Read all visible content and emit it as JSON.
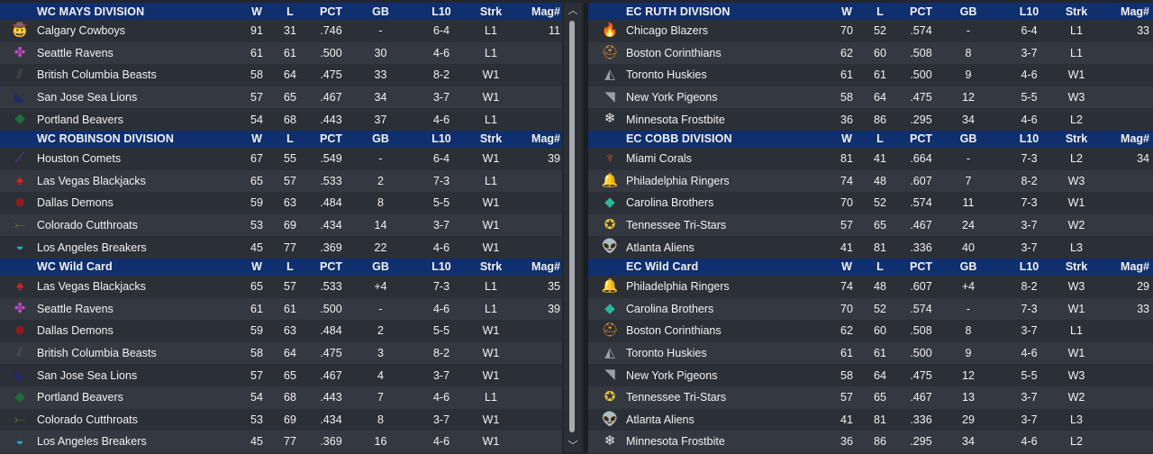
{
  "columns": [
    "W",
    "L",
    "PCT",
    "GB",
    "L10",
    "Strk",
    "Mag#"
  ],
  "left": [
    {
      "title": "WC MAYS DIVISION",
      "rows": [
        {
          "team": "Calgary Cowboys",
          "logo": "cowboy-hat-icon",
          "logo_glyph": "🤠",
          "color": "#4aa3d8",
          "w": "91",
          "l": "31",
          "pct": ".746",
          "gb": "-",
          "l10": "6-4",
          "strk": "L1",
          "mag": "11"
        },
        {
          "team": "Seattle Ravens",
          "logo": "raven-icon",
          "logo_glyph": "✤",
          "color": "#c24ac2",
          "w": "61",
          "l": "61",
          "pct": ".500",
          "gb": "30",
          "l10": "4-6",
          "strk": "L1",
          "mag": ""
        },
        {
          "team": "British Columbia Beasts",
          "logo": "claw-icon",
          "logo_glyph": "⫽",
          "color": "#5a5a5a",
          "w": "58",
          "l": "64",
          "pct": ".475",
          "gb": "33",
          "l10": "8-2",
          "strk": "W1",
          "mag": ""
        },
        {
          "team": "San Jose Sea Lions",
          "logo": "sea-lion-icon",
          "logo_glyph": "◣",
          "color": "#1f2a66",
          "w": "57",
          "l": "65",
          "pct": ".467",
          "gb": "34",
          "l10": "3-7",
          "strk": "W1",
          "mag": ""
        },
        {
          "team": "Portland Beavers",
          "logo": "beaver-icon",
          "logo_glyph": "◆",
          "color": "#1f6e3a",
          "w": "54",
          "l": "68",
          "pct": ".443",
          "gb": "37",
          "l10": "4-6",
          "strk": "L1",
          "mag": ""
        }
      ]
    },
    {
      "title": "WC ROBINSON DIVISION",
      "rows": [
        {
          "team": "Houston Comets",
          "logo": "comet-icon",
          "logo_glyph": "⟋",
          "color": "#7a3ab0",
          "w": "67",
          "l": "55",
          "pct": ".549",
          "gb": "-",
          "l10": "6-4",
          "strk": "W1",
          "mag": "39"
        },
        {
          "team": "Las Vegas Blackjacks",
          "logo": "spade-icon",
          "logo_glyph": "♠",
          "color": "#d42424",
          "w": "65",
          "l": "57",
          "pct": ".533",
          "gb": "2",
          "l10": "7-3",
          "strk": "L1",
          "mag": ""
        },
        {
          "team": "Dallas Demons",
          "logo": "demon-icon",
          "logo_glyph": "☻",
          "color": "#9a1b1b",
          "w": "59",
          "l": "63",
          "pct": ".484",
          "gb": "8",
          "l10": "5-5",
          "strk": "W1",
          "mag": ""
        },
        {
          "team": "Colorado Cutthroats",
          "logo": "fish-icon",
          "logo_glyph": "⤚",
          "color": "#6b7a3a",
          "w": "53",
          "l": "69",
          "pct": ".434",
          "gb": "14",
          "l10": "3-7",
          "strk": "W1",
          "mag": ""
        },
        {
          "team": "Los Angeles Breakers",
          "logo": "wave-icon",
          "logo_glyph": "◒",
          "color": "#26a8c8",
          "w": "45",
          "l": "77",
          "pct": ".369",
          "gb": "22",
          "l10": "4-6",
          "strk": "W1",
          "mag": ""
        }
      ]
    },
    {
      "title": "WC  Wild Card",
      "rows": [
        {
          "team": "Las Vegas Blackjacks",
          "logo": "spade-icon",
          "logo_glyph": "♠",
          "color": "#d42424",
          "w": "65",
          "l": "57",
          "pct": ".533",
          "gb": "+4",
          "l10": "7-3",
          "strk": "L1",
          "mag": "35"
        },
        {
          "team": "Seattle Ravens",
          "logo": "raven-icon",
          "logo_glyph": "✤",
          "color": "#c24ac2",
          "w": "61",
          "l": "61",
          "pct": ".500",
          "gb": "-",
          "l10": "4-6",
          "strk": "L1",
          "mag": "39"
        },
        {
          "team": "Dallas Demons",
          "logo": "demon-icon",
          "logo_glyph": "☻",
          "color": "#9a1b1b",
          "w": "59",
          "l": "63",
          "pct": ".484",
          "gb": "2",
          "l10": "5-5",
          "strk": "W1",
          "mag": ""
        },
        {
          "team": "British Columbia Beasts",
          "logo": "claw-icon",
          "logo_glyph": "⫽",
          "color": "#5a5a5a",
          "w": "58",
          "l": "64",
          "pct": ".475",
          "gb": "3",
          "l10": "8-2",
          "strk": "W1",
          "mag": ""
        },
        {
          "team": "San Jose Sea Lions",
          "logo": "sea-lion-icon",
          "logo_glyph": "◣",
          "color": "#1f2a66",
          "w": "57",
          "l": "65",
          "pct": ".467",
          "gb": "4",
          "l10": "3-7",
          "strk": "W1",
          "mag": ""
        },
        {
          "team": "Portland Beavers",
          "logo": "beaver-icon",
          "logo_glyph": "◆",
          "color": "#1f6e3a",
          "w": "54",
          "l": "68",
          "pct": ".443",
          "gb": "7",
          "l10": "4-6",
          "strk": "L1",
          "mag": ""
        },
        {
          "team": "Colorado Cutthroats",
          "logo": "fish-icon",
          "logo_glyph": "⤚",
          "color": "#6b7a3a",
          "w": "53",
          "l": "69",
          "pct": ".434",
          "gb": "8",
          "l10": "3-7",
          "strk": "W1",
          "mag": ""
        },
        {
          "team": "Los Angeles Breakers",
          "logo": "wave-icon",
          "logo_glyph": "◒",
          "color": "#26a8c8",
          "w": "45",
          "l": "77",
          "pct": ".369",
          "gb": "16",
          "l10": "4-6",
          "strk": "W1",
          "mag": ""
        }
      ]
    }
  ],
  "right": [
    {
      "title": "EC RUTH DIVISION",
      "rows": [
        {
          "team": "Chicago Blazers",
          "logo": "flame-icon",
          "logo_glyph": "🔥",
          "color": "#e0531f",
          "w": "70",
          "l": "52",
          "pct": ".574",
          "gb": "-",
          "l10": "6-4",
          "strk": "L1",
          "mag": "33"
        },
        {
          "team": "Boston Corinthians",
          "logo": "helmet-icon",
          "logo_glyph": "⛑",
          "color": "#e8902a",
          "w": "62",
          "l": "60",
          "pct": ".508",
          "gb": "8",
          "l10": "3-7",
          "strk": "L1",
          "mag": ""
        },
        {
          "team": "Toronto Huskies",
          "logo": "husky-icon",
          "logo_glyph": "◭",
          "color": "#9aa0a8",
          "w": "61",
          "l": "61",
          "pct": ".500",
          "gb": "9",
          "l10": "4-6",
          "strk": "W1",
          "mag": ""
        },
        {
          "team": "New York Pigeons",
          "logo": "pigeon-icon",
          "logo_glyph": "◥",
          "color": "#9aa0a8",
          "w": "58",
          "l": "64",
          "pct": ".475",
          "gb": "12",
          "l10": "5-5",
          "strk": "W3",
          "mag": ""
        },
        {
          "team": "Minnesota Frostbite",
          "logo": "snowflake-icon",
          "logo_glyph": "❄",
          "color": "#e8e8e8",
          "w": "36",
          "l": "86",
          "pct": ".295",
          "gb": "34",
          "l10": "4-6",
          "strk": "L2",
          "mag": ""
        }
      ]
    },
    {
      "title": "EC COBB DIVISION",
      "rows": [
        {
          "team": "Miami Corals",
          "logo": "coral-icon",
          "logo_glyph": "♆",
          "color": "#e05a3a",
          "w": "81",
          "l": "41",
          "pct": ".664",
          "gb": "-",
          "l10": "7-3",
          "strk": "L2",
          "mag": "34"
        },
        {
          "team": "Philadelphia Ringers",
          "logo": "liberty-bell-icon",
          "logo_glyph": "🔔",
          "color": "#c89a3a",
          "w": "74",
          "l": "48",
          "pct": ".607",
          "gb": "7",
          "l10": "8-2",
          "strk": "W3",
          "mag": ""
        },
        {
          "team": "Carolina Brothers",
          "logo": "diamond-icon",
          "logo_glyph": "◆",
          "color": "#2ab89a",
          "w": "70",
          "l": "52",
          "pct": ".574",
          "gb": "11",
          "l10": "7-3",
          "strk": "W1",
          "mag": ""
        },
        {
          "team": "Tennessee Tri-Stars",
          "logo": "tri-stars-icon",
          "logo_glyph": "✪",
          "color": "#e8c23a",
          "w": "57",
          "l": "65",
          "pct": ".467",
          "gb": "24",
          "l10": "3-7",
          "strk": "W2",
          "mag": ""
        },
        {
          "team": "Atlanta Aliens",
          "logo": "alien-icon",
          "logo_glyph": "👽",
          "color": "#4ad82a",
          "w": "41",
          "l": "81",
          "pct": ".336",
          "gb": "40",
          "l10": "3-7",
          "strk": "L3",
          "mag": ""
        }
      ]
    },
    {
      "title": "EC  Wild Card",
      "rows": [
        {
          "team": "Philadelphia Ringers",
          "logo": "liberty-bell-icon",
          "logo_glyph": "🔔",
          "color": "#c89a3a",
          "w": "74",
          "l": "48",
          "pct": ".607",
          "gb": "+4",
          "l10": "8-2",
          "strk": "W3",
          "mag": "29"
        },
        {
          "team": "Carolina Brothers",
          "logo": "diamond-icon",
          "logo_glyph": "◆",
          "color": "#2ab89a",
          "w": "70",
          "l": "52",
          "pct": ".574",
          "gb": "-",
          "l10": "7-3",
          "strk": "W1",
          "mag": "33"
        },
        {
          "team": "Boston Corinthians",
          "logo": "helmet-icon",
          "logo_glyph": "⛑",
          "color": "#e8902a",
          "w": "62",
          "l": "60",
          "pct": ".508",
          "gb": "8",
          "l10": "3-7",
          "strk": "L1",
          "mag": ""
        },
        {
          "team": "Toronto Huskies",
          "logo": "husky-icon",
          "logo_glyph": "◭",
          "color": "#9aa0a8",
          "w": "61",
          "l": "61",
          "pct": ".500",
          "gb": "9",
          "l10": "4-6",
          "strk": "W1",
          "mag": ""
        },
        {
          "team": "New York Pigeons",
          "logo": "pigeon-icon",
          "logo_glyph": "◥",
          "color": "#9aa0a8",
          "w": "58",
          "l": "64",
          "pct": ".475",
          "gb": "12",
          "l10": "5-5",
          "strk": "W3",
          "mag": ""
        },
        {
          "team": "Tennessee Tri-Stars",
          "logo": "tri-stars-icon",
          "logo_glyph": "✪",
          "color": "#e8c23a",
          "w": "57",
          "l": "65",
          "pct": ".467",
          "gb": "13",
          "l10": "3-7",
          "strk": "W2",
          "mag": ""
        },
        {
          "team": "Atlanta Aliens",
          "logo": "alien-icon",
          "logo_glyph": "👽",
          "color": "#4ad82a",
          "w": "41",
          "l": "81",
          "pct": ".336",
          "gb": "29",
          "l10": "3-7",
          "strk": "L3",
          "mag": ""
        },
        {
          "team": "Minnesota Frostbite",
          "logo": "snowflake-icon",
          "logo_glyph": "❄",
          "color": "#e8e8e8",
          "w": "36",
          "l": "86",
          "pct": ".295",
          "gb": "34",
          "l10": "4-6",
          "strk": "L2",
          "mag": ""
        }
      ]
    }
  ],
  "scroll": {
    "up_glyph": "︿",
    "down_glyph": "﹀"
  }
}
